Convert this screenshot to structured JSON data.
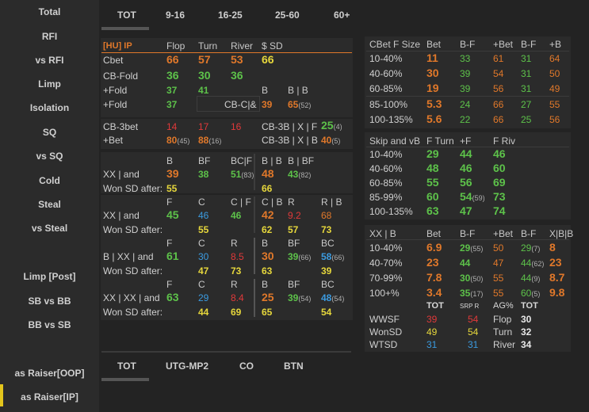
{
  "sidebar": {
    "items": [
      "Total",
      "RFI",
      "vs RFI",
      "Limp",
      "Isolation",
      "SQ",
      "vs SQ",
      "Cold",
      "Steal",
      "vs Steal",
      "Limp [Post]",
      "SB vs BB",
      "BB vs SB",
      "as Raiser[OOP]",
      "as Raiser[IP]"
    ]
  },
  "top_tabs": [
    "TOT",
    "9-16",
    "16-25",
    "25-60",
    "60+"
  ],
  "bottom_tabs": [
    "TOT",
    "UTG-MP2",
    "CO",
    "BTN"
  ],
  "left": {
    "hu_ip": "[HU] IP",
    "flop": "Flop",
    "turn": "Turn",
    "river": "River",
    "sd": "$ SD",
    "cbet": "Cbet",
    "cbet_v": [
      "66",
      "57",
      "53",
      "66"
    ],
    "cbfold": "CB-Fold",
    "cbfold_v": [
      "36",
      "30",
      "36"
    ],
    "pfold1": "+Fold",
    "pfold1_v": [
      "37",
      "41"
    ],
    "b": "B",
    "bb": "B | B",
    "pfold2": "+Fold",
    "pfold2_v": "37",
    "cbc": "CB-C|&",
    "cbc_v": "39",
    "cbc_v2": "65",
    "cbc_s": "(52)",
    "cb3bet": "CB-3bet",
    "cb3_v": [
      "14",
      "17",
      "16"
    ],
    "cb3bxf": "CB-3B | X | F",
    "cb3bxf_v": "25",
    "cb3bxf_s": "(4)",
    "pbet": "+Bet",
    "pbet_v1": "80",
    "pbet_s1": "(45)",
    "pbet_v2": "88",
    "pbet_s2": "(16)",
    "cb3bxb": "CB-3B | X | B",
    "cb3bxb_v": "40",
    "cb3bxb_s": "(5)",
    "s1": {
      "h": [
        "B",
        "BF",
        "BC|F",
        "B | B",
        "B | BF"
      ],
      "l1": "XX | and",
      "l2": "Won SD after:",
      "v": [
        "39",
        "38",
        "51",
        "48",
        "43"
      ],
      "sv": [
        "",
        "",
        "(83)",
        "",
        "(82)"
      ],
      "w": [
        "55",
        "",
        "",
        "66",
        ""
      ]
    },
    "s2": {
      "h": [
        "F",
        "C",
        "C | F",
        "C | B",
        "R",
        "R | B"
      ],
      "l1": "XX | and",
      "l2": "Won SD after:",
      "v": [
        "45",
        "46",
        "46",
        "42",
        "9.2",
        "68"
      ],
      "w": [
        "",
        "55",
        "",
        "62",
        "57",
        "73"
      ]
    },
    "s3": {
      "h": [
        "F",
        "C",
        "R",
        "B",
        "BF",
        "BC"
      ],
      "l1": "B | XX | and",
      "l2": "Won SD after:",
      "v": [
        "61",
        "30",
        "8.5",
        "30",
        "39",
        "58"
      ],
      "sv": [
        "",
        "",
        "",
        "",
        "(66)",
        "(66)"
      ],
      "w": [
        "",
        "47",
        "73",
        "63",
        "",
        "39"
      ]
    },
    "s4": {
      "h": [
        "F",
        "C",
        "R",
        "B",
        "BF",
        "BC"
      ],
      "l1": "XX | XX | and",
      "l2": "Won SD after:",
      "v": [
        "63",
        "29",
        "8.4",
        "25",
        "39",
        "48"
      ],
      "sv": [
        "",
        "",
        "",
        "",
        "(54)",
        "(54)"
      ],
      "w": [
        "",
        "44",
        "69",
        "65",
        "",
        "54"
      ]
    }
  },
  "right": {
    "cbfs": {
      "h": [
        "CBet F Size",
        "Bet",
        "B-F",
        "+Bet",
        "B-F",
        "+B"
      ],
      "rows": [
        [
          "10-40%",
          "11",
          "33",
          "61",
          "31",
          "64"
        ],
        [
          "40-60%",
          "30",
          "39",
          "54",
          "31",
          "50"
        ],
        [
          "60-85%",
          "19",
          "39",
          "56",
          "31",
          "49"
        ],
        [
          "85-100%",
          "5.3",
          "24",
          "66",
          "27",
          "55"
        ],
        [
          "100-135%",
          "5.6",
          "22",
          "66",
          "25",
          "56"
        ]
      ]
    },
    "skip": {
      "h": [
        "Skip and vB",
        "F Turn",
        "+F",
        "F Riv"
      ],
      "rows": [
        [
          "10-40%",
          "29",
          "44",
          "46"
        ],
        [
          "40-60%",
          "48",
          "46",
          "60"
        ],
        [
          "60-85%",
          "55",
          "56",
          "69"
        ],
        [
          "85-99%",
          "60",
          "54",
          "73"
        ],
        [
          "100-135%",
          "63",
          "47",
          "74"
        ]
      ],
      "sub": "(59)"
    },
    "xxb": {
      "h": [
        "XX | B",
        "Bet",
        "B-F",
        "+Bet",
        "B-F",
        "X|B|B"
      ],
      "rows": [
        [
          "10-40%",
          "6.9",
          "29",
          "50",
          "29",
          "8"
        ],
        [
          "40-70%",
          "23",
          "44",
          "47",
          "44",
          "23"
        ],
        [
          "70-99%",
          "7.8",
          "30",
          "55",
          "44",
          "8.7"
        ],
        [
          "100+%",
          "3.4",
          "35",
          "55",
          "60",
          "9.8"
        ]
      ],
      "s1": [
        "(55)",
        "",
        "(50)",
        "(17)"
      ],
      "s2": [
        "(7)",
        "(62)",
        "(9)",
        "(5)"
      ]
    },
    "sum": {
      "h": [
        "TOT",
        "SRP R",
        "AG%",
        "TOT"
      ],
      "wwsf": "WWSF",
      "wonsd": "WonSD",
      "wtsd": "WTSD",
      "v1": [
        "39",
        "49",
        "31"
      ],
      "v2": [
        "54",
        "54",
        "31"
      ],
      "ag": [
        "Flop",
        "Turn",
        "River"
      ],
      "agv": [
        "30",
        "32",
        "34"
      ]
    }
  }
}
